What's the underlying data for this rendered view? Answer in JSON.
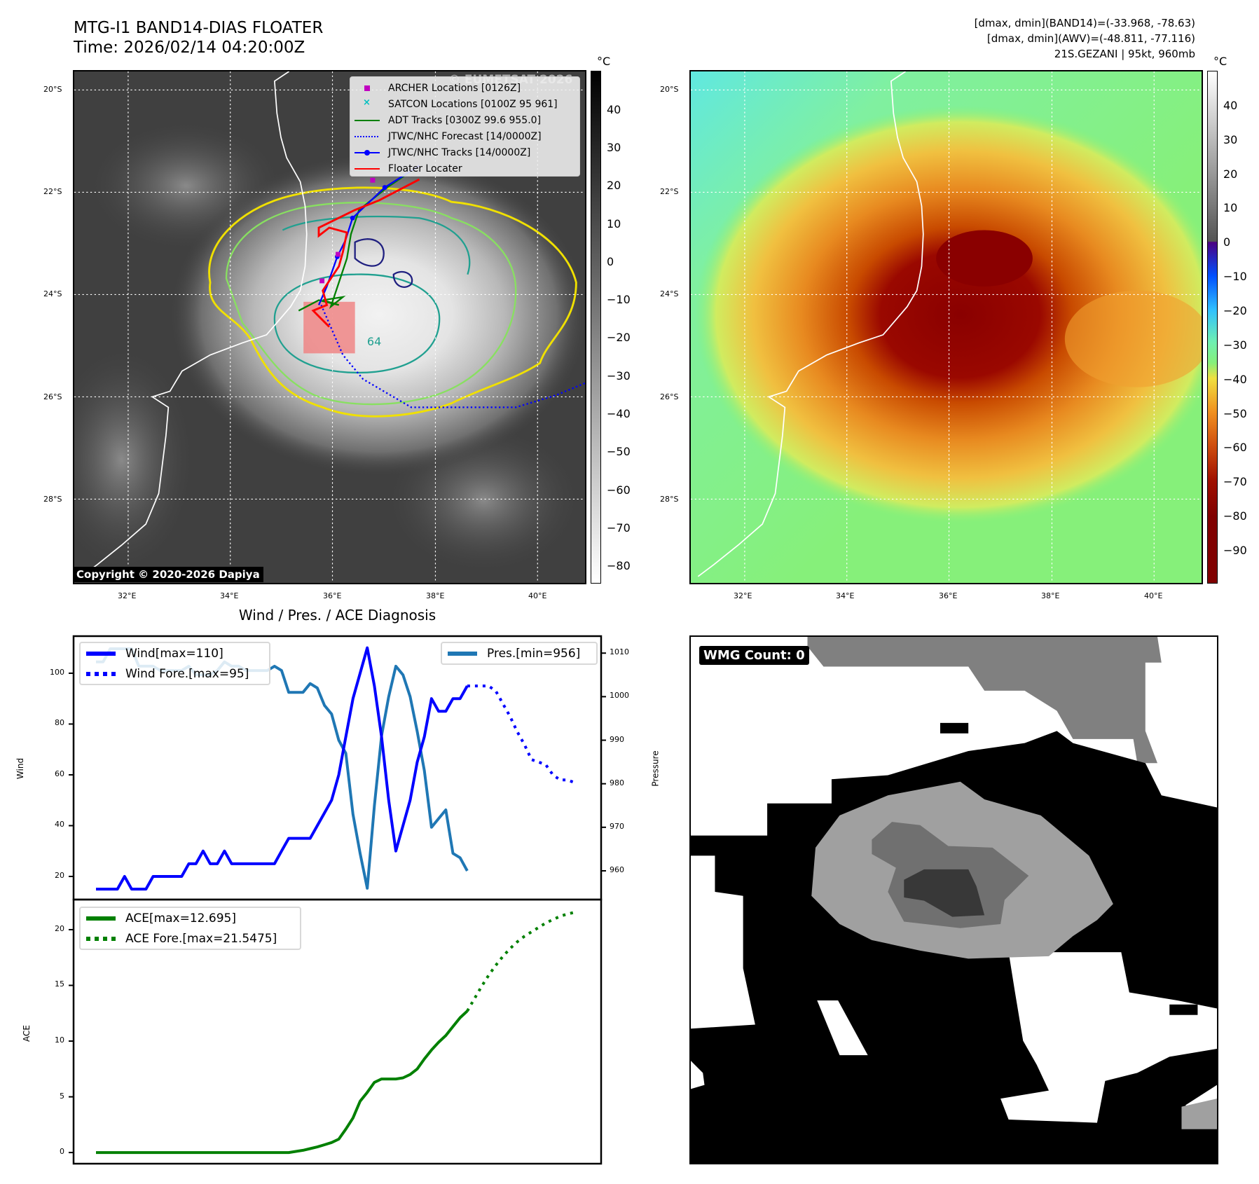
{
  "header": {
    "title": "MTG-I1 BAND14-DIAS FLOATER",
    "time": "Time: 2026/02/14 04:20:00Z",
    "stats": [
      "[dmax, dmin](BAND14)=(-33.968, -78.63)",
      "[dmax, dmin](AWV)=(-48.811, -77.116)",
      "21S.GEZANI | 95kt, 960mb"
    ]
  },
  "map_ir": {
    "watermark": "© EUMETSAT 2026",
    "copyright": "Copyright © 2020-2026 Dapiya",
    "contour_label": "64",
    "legend": [
      {
        "label": "ARCHER Locations [0126Z]",
        "color": "#c000c0",
        "style": "square"
      },
      {
        "label": "SATCON Locations [0100Z 95 961]",
        "color": "#00c0c0",
        "style": "x"
      },
      {
        "label": "ADT Tracks [0300Z 99.6 955.0]",
        "color": "#008000",
        "style": "line"
      },
      {
        "label": "JTWC/NHC Forecast [14/0000Z]",
        "color": "#0000ff",
        "style": "dotted"
      },
      {
        "label": "JTWC/NHC Tracks [14/0000Z]",
        "color": "#0000ff",
        "style": "line-dot"
      },
      {
        "label": "Floater Locater",
        "color": "#ff0000",
        "style": "line"
      }
    ],
    "colorbar": {
      "unit": "°C",
      "ticks": [
        "40",
        "30",
        "20",
        "10",
        "0",
        "−10",
        "−20",
        "−30",
        "−40",
        "−50",
        "−60",
        "−70",
        "−80"
      ],
      "tick_values": [
        40,
        30,
        20,
        10,
        0,
        -10,
        -20,
        -30,
        -40,
        -50,
        -60,
        -70,
        -80
      ],
      "range": [
        -84.6,
        50.3
      ]
    }
  },
  "map_enh": {
    "colorbar": {
      "unit": "°C",
      "ticks": [
        "40",
        "30",
        "20",
        "10",
        "0",
        "−10",
        "−20",
        "−30",
        "−40",
        "−50",
        "−60",
        "−70",
        "−80",
        "−90"
      ],
      "tick_values": [
        40,
        30,
        20,
        10,
        0,
        -10,
        -20,
        -30,
        -40,
        -50,
        -60,
        -70,
        -80,
        -90
      ],
      "range": [
        -99.6,
        50.2
      ]
    }
  },
  "lat_ticks": [
    "20°S",
    "22°S",
    "24°S",
    "26°S",
    "28°S"
  ],
  "lon_ticks": [
    "32°E",
    "34°E",
    "36°E",
    "38°E",
    "40°E"
  ],
  "wmg": {
    "label": "WMG Count: 0"
  },
  "chart_title": "Wind / Pres. / ACE Diagnosis",
  "chart_data": [
    {
      "type": "line",
      "title": "Wind / Pres. / ACE Diagnosis",
      "ylabel": "Wind",
      "y2label": "Pressure",
      "ylim": [
        10.9,
        114.6
      ],
      "y2lim": [
        953.4,
        1013.9
      ],
      "xlim": [
        -3.1,
        70.8
      ],
      "yticks": [
        20,
        40,
        60,
        80,
        100
      ],
      "y2ticks": [
        960,
        970,
        980,
        990,
        1000,
        1010
      ],
      "series": [
        {
          "name": "Wind[max=110]",
          "color": "#0000ff",
          "style": "solid",
          "x_start": 0,
          "values": [
            15,
            15,
            15,
            15,
            20,
            15,
            15,
            15,
            20,
            20,
            20,
            20,
            20,
            25,
            25,
            30,
            25,
            25,
            30,
            25,
            25,
            25,
            25,
            25,
            25,
            25,
            30,
            35,
            35,
            35,
            35,
            40,
            45,
            50,
            60,
            75,
            90,
            100,
            110,
            95,
            75,
            50,
            30,
            40,
            50,
            65,
            75,
            90,
            85,
            85,
            90,
            90,
            95
          ]
        },
        {
          "name": "Wind Fore.[max=95]",
          "color": "#0000ff",
          "style": "dotted",
          "x_start": 52,
          "values": [
            95,
            95,
            95,
            95,
            93,
            88,
            83,
            77,
            72,
            66,
            65,
            64,
            60,
            58,
            58,
            57
          ]
        },
        {
          "name": "Pres.[min=956]",
          "color": "#1f77b4",
          "style": "solid",
          "axis": "right",
          "x_start": 0,
          "values": [
            1008,
            1008,
            1011,
            1011,
            1011,
            1011,
            1007,
            1007,
            1007,
            1006,
            1006,
            1006,
            1006,
            1007,
            1005,
            1005,
            1005,
            1006,
            1008,
            1007,
            1007,
            1006,
            1006,
            1006,
            1006,
            1007,
            1006,
            1001,
            1001,
            1001,
            1003,
            1002,
            998,
            996,
            990,
            987,
            973,
            964,
            956,
            975,
            991,
            1000,
            1007,
            1005,
            1000,
            992,
            983,
            970,
            972,
            974,
            964,
            963,
            960
          ]
        }
      ]
    },
    {
      "type": "line",
      "ylabel": "ACE",
      "ylim": [
        -1.0,
        22.7
      ],
      "xlim": [
        -3.1,
        70.8
      ],
      "yticks": [
        0,
        5,
        10,
        15,
        20
      ],
      "series": [
        {
          "name": "ACE[max=12.695]",
          "color": "#008000",
          "style": "solid",
          "x_start": 0,
          "values": [
            0,
            0,
            0,
            0,
            0,
            0,
            0,
            0,
            0,
            0,
            0,
            0,
            0,
            0,
            0,
            0,
            0,
            0,
            0,
            0,
            0,
            0,
            0,
            0,
            0,
            0,
            0,
            0,
            0.1,
            0.2,
            0.35,
            0.5,
            0.7,
            0.9,
            1.2,
            2.1,
            3.1,
            4.6,
            5.4,
            6.3,
            6.6,
            6.6,
            6.6,
            6.7,
            7.0,
            7.5,
            8.4,
            9.2,
            9.9,
            10.5,
            11.3,
            12.1,
            12.695
          ]
        },
        {
          "name": "ACE Fore.[max=21.5475]",
          "color": "#008000",
          "style": "dotted",
          "x_start": 52,
          "values": [
            12.695,
            13.8,
            14.9,
            15.9,
            16.8,
            17.6,
            18.3,
            18.9,
            19.4,
            19.8,
            20.2,
            20.6,
            20.9,
            21.2,
            21.4,
            21.5475
          ]
        }
      ]
    }
  ]
}
